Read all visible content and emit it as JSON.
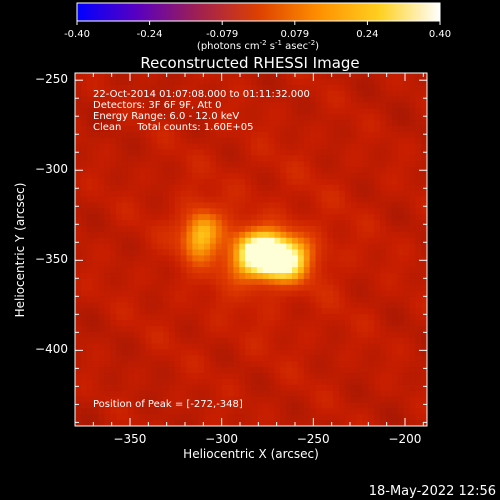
{
  "chart_data": {
    "type": "heatmap",
    "title": "Reconstructed RHESSI Image",
    "colorbar": {
      "ticks": [
        "-0.40",
        "-0.24",
        "-0.079",
        "0.079",
        "0.24",
        "0.40"
      ],
      "range": [
        -0.4,
        0.4
      ],
      "unit_parts": [
        "(photons cm",
        "-2",
        " s",
        "-1",
        " asec",
        "-2",
        ")"
      ]
    },
    "xlabel": "Heliocentric X (arcsec)",
    "ylabel": "Heliocentric Y (arcsec)",
    "xticks": [
      -350,
      -300,
      -250,
      -200
    ],
    "yticks": [
      -250,
      -300,
      -350,
      -400
    ],
    "xtick_labels": [
      "−350",
      "−300",
      "−250",
      "−200"
    ],
    "ytick_labels": [
      "−250",
      "−300",
      "−350",
      "−400"
    ],
    "xlim": [
      -380,
      -188
    ],
    "ylim": [
      -442,
      -246
    ],
    "info_lines": [
      "22-Oct-2014 01:07:08.000 to 01:11:32.000",
      "Detectors: 3F 6F 9F, Att 0",
      "Energy Range: 6.0 - 12.0 keV",
      "Clean     Total counts: 1.60E+05"
    ],
    "peak_text": "Position of Peak = [-272,-348]",
    "peak": {
      "x": -272,
      "y": -348
    },
    "sources": [
      {
        "x": -274,
        "y": -348,
        "peak": 1.0,
        "sx": 15,
        "sy": 10
      },
      {
        "x": -312,
        "y": -335,
        "peak": 0.55,
        "sx": 8,
        "sy": 10
      }
    ],
    "colormap": [
      "#0000ff",
      "#5a00c0",
      "#a02050",
      "#dd4000",
      "#ff9000",
      "#ffd020",
      "#ffffff"
    ]
  },
  "footer": {
    "timestamp": "18-May-2022 12:56"
  }
}
